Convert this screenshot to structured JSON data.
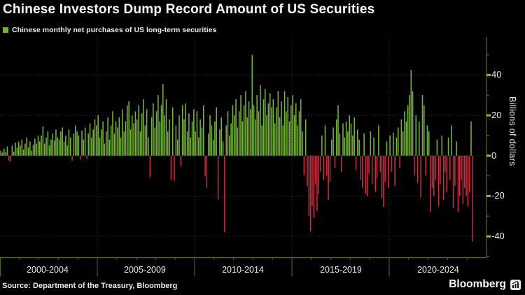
{
  "title": "Chinese Investors Dump Record Amount of US Securities",
  "legend": {
    "label": "Chinese monthly net purchases of US long-term securities",
    "swatch_color": "#72b62b"
  },
  "source": "Source: Department of the Treasury, Bloomberg",
  "brand": {
    "name": "Bloomberg",
    "icon": "bloomberg-terminal-icon"
  },
  "y_axis": {
    "label": "Billions of dollars",
    "tick_labels": [
      "40",
      "20",
      "0",
      "-20",
      "-40"
    ],
    "tick_values": [
      40,
      20,
      0,
      -20,
      -40
    ],
    "minor_tick_values": [
      50,
      30,
      10,
      -10,
      -30,
      -50
    ]
  },
  "x_axis": {
    "labels": [
      "2000-2004",
      "2005-2009",
      "2010-2014",
      "2015-2019",
      "2020-2024"
    ]
  },
  "colors": {
    "background": "#000000",
    "positive_bar": "#76b72a",
    "negative_bar": "#d02a3c",
    "grid": "#3f3f3f",
    "axis_line": "#52701d",
    "major_tick": "#8fbe39",
    "minor_tick": "#52701d",
    "text": "#ececec"
  },
  "chart_data": {
    "type": "bar",
    "title": "Chinese Investors Dump Record Amount of US Securities",
    "series_name": "Chinese monthly net purchases of US long-term securities",
    "unit": "billions of US dollars",
    "frequency": "monthly",
    "start": "2000-01",
    "end": "2024-04",
    "xlabel": "",
    "ylabel": "Billions of dollars",
    "ylim": [
      -50,
      58
    ],
    "grid": "dotted, every 20 on y; dotted verticals at 5-year boundaries",
    "legend_position": "top-left",
    "note": "values estimated from pixel heights against gridlines",
    "values_by_year": {
      "2000": [
        2.5,
        1.5,
        3.5,
        2,
        4.5,
        -2.5,
        -3,
        5,
        2,
        6.5,
        4,
        7
      ],
      "2001": [
        5,
        8,
        3,
        6,
        9,
        4,
        7,
        2.5,
        5.5,
        8.5,
        6,
        10
      ],
      "2002": [
        7,
        10,
        14.5,
        6,
        9,
        12,
        5,
        8,
        11,
        7.5,
        13,
        9
      ],
      "2003": [
        8,
        12,
        14,
        7,
        10,
        5,
        13,
        9,
        -2.5,
        11,
        15,
        12
      ],
      "2004": [
        10,
        -2,
        12.5,
        8,
        14,
        -1.5,
        11,
        16,
        9,
        13,
        18,
        15
      ],
      "2005": [
        20,
        9,
        13,
        17,
        6,
        12,
        19,
        8,
        15,
        22,
        11,
        17
      ],
      "2006": [
        14,
        19,
        9,
        23,
        12,
        17,
        25,
        27,
        13,
        20,
        16,
        22
      ],
      "2007": [
        18,
        25,
        12,
        21,
        28,
        15,
        23,
        9,
        -10.5,
        19,
        26,
        14
      ],
      "2008": [
        22,
        30,
        17,
        25,
        35.5,
        20,
        28,
        12,
        18,
        -12,
        24,
        -12.5
      ],
      "2009": [
        15,
        8,
        20,
        -5,
        25,
        18,
        26,
        12,
        21,
        9,
        17,
        23
      ],
      "2010": [
        12,
        22,
        9,
        18,
        14,
        25,
        -10,
        -16,
        11,
        20,
        15,
        8
      ],
      "2011": [
        17,
        24,
        -21.8,
        13,
        19,
        7,
        -38,
        15,
        22,
        10,
        16,
        25
      ],
      "2012": [
        20,
        28,
        14,
        22,
        30,
        17,
        25,
        32,
        19,
        27,
        23,
        50
      ],
      "2013": [
        25,
        18,
        30,
        22,
        35,
        15,
        28,
        33,
        20,
        26,
        31,
        24
      ],
      "2014": [
        28,
        16,
        24,
        32,
        19,
        27,
        15,
        32,
        22,
        29,
        17,
        25
      ],
      "2015": [
        30,
        20,
        26,
        15,
        22,
        28,
        12,
        -9.7,
        18,
        -15,
        -30,
        -37.5
      ],
      "2016": [
        -25,
        -31,
        -14,
        -27.5,
        -19,
        -8,
        10,
        -12,
        15,
        -10,
        -22,
        -13
      ],
      "2017": [
        8,
        14,
        -6,
        18,
        25,
        11,
        -8,
        16,
        9,
        17,
        12,
        20
      ],
      "2018": [
        16,
        10,
        19,
        -7,
        13,
        8,
        -12,
        -16,
        11,
        -19,
        -20,
        -9
      ],
      "2019": [
        12,
        -14,
        9,
        -18,
        -11,
        15,
        -8,
        -21,
        -25.5,
        -13,
        7,
        -16
      ],
      "2020": [
        10,
        -8,
        11.5,
        -15,
        9,
        14,
        -6,
        18,
        12,
        22,
        17,
        25
      ],
      "2021": [
        30,
        42.5,
        32,
        -10,
        20,
        -13.5,
        17,
        -20.5,
        30,
        25,
        -10,
        15
      ],
      "2022": [
        12,
        -28,
        -16,
        -20,
        -12,
        8,
        -25,
        -14,
        10,
        -22,
        -8,
        -18
      ],
      "2023": [
        9,
        -12,
        15,
        -26,
        -15,
        7,
        -28,
        -20,
        -12,
        -24,
        -16,
        -20
      ],
      "2024": [
        -25,
        -18,
        17,
        -42.5
      ]
    }
  }
}
